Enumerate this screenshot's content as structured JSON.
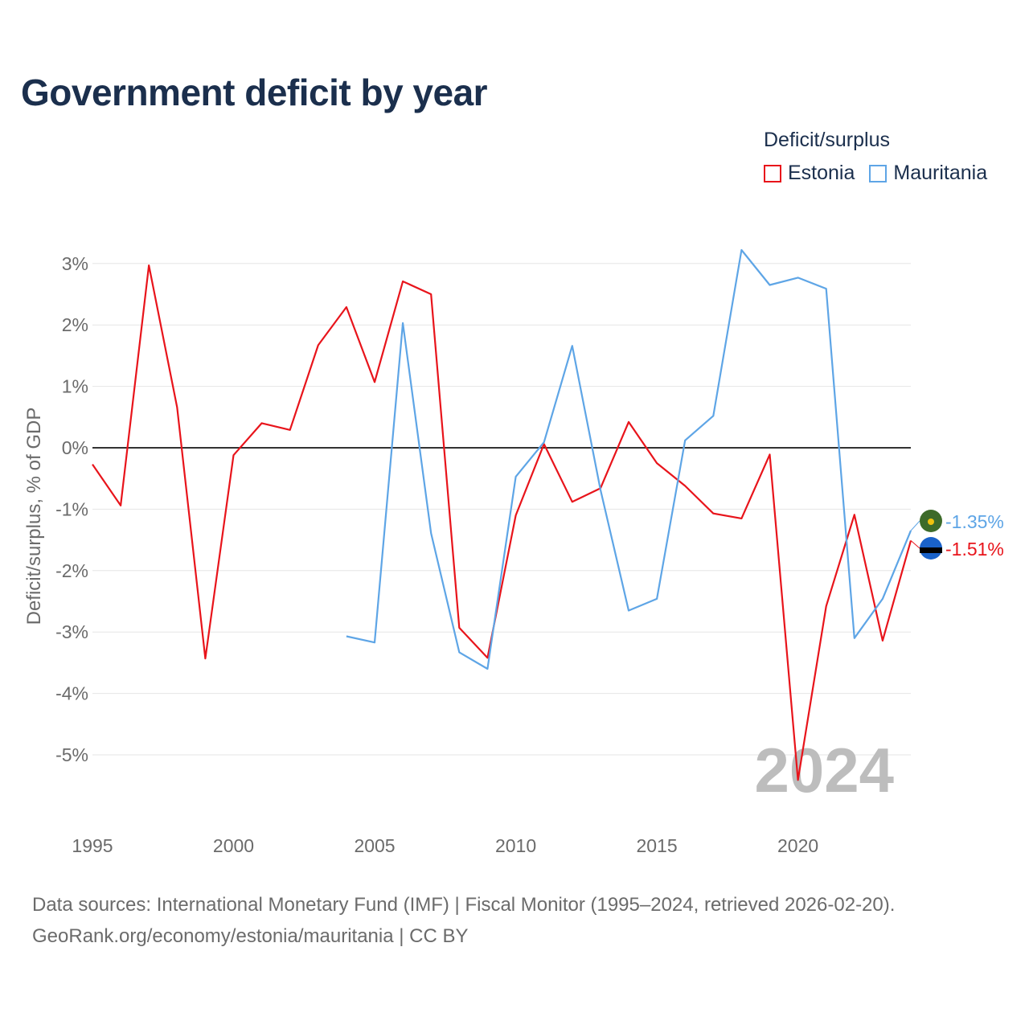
{
  "title": "Government deficit by year",
  "legend": {
    "title": "Deficit/surplus",
    "items": [
      {
        "label": "Estonia",
        "color": "#e8141b"
      },
      {
        "label": "Mauritania",
        "color": "#5ea5e6"
      }
    ]
  },
  "footer": {
    "line1": "Data sources: International Monetary Fund (IMF) | Fiscal Monitor (1995–2024, retrieved 2026-02-20).",
    "line2": "GeoRank.org/economy/estonia/mauritania | CC BY"
  },
  "chart_data": {
    "type": "line",
    "title": "Government deficit by year",
    "xlabel": "",
    "ylabel": "Deficit/surplus, % of GDP",
    "xlim": [
      1995,
      2024
    ],
    "ylim": [
      -6,
      3.5
    ],
    "x_ticks": [
      1995,
      2000,
      2005,
      2010,
      2015,
      2020
    ],
    "y_ticks": [
      3,
      2,
      1,
      0,
      -1,
      -2,
      -3,
      -4,
      -5
    ],
    "y_tick_labels": [
      "3%",
      "2%",
      "1%",
      "0%",
      "-1%",
      "-2%",
      "-3%",
      "-4%",
      "-5%"
    ],
    "watermark_year": "2024",
    "series": [
      {
        "name": "Estonia",
        "color": "#e8141b",
        "end_label": "-1.51%",
        "x": [
          1995,
          1996,
          1997,
          1998,
          1999,
          2000,
          2001,
          2002,
          2003,
          2004,
          2005,
          2006,
          2007,
          2008,
          2009,
          2010,
          2011,
          2012,
          2013,
          2014,
          2015,
          2016,
          2017,
          2018,
          2019,
          2020,
          2021,
          2022,
          2023,
          2024
        ],
        "values": [
          -0.27,
          -0.94,
          2.97,
          0.66,
          -3.43,
          -0.12,
          0.4,
          0.29,
          1.67,
          2.29,
          1.07,
          2.71,
          2.5,
          -2.93,
          -3.42,
          -1.1,
          0.06,
          -0.88,
          -0.66,
          0.42,
          -0.25,
          -0.62,
          -1.07,
          -1.15,
          -0.11,
          -5.41,
          -2.58,
          -1.09,
          -3.14,
          -1.51
        ]
      },
      {
        "name": "Mauritania",
        "color": "#5ea5e6",
        "end_label": "-1.35%",
        "x": [
          2004,
          2005,
          2006,
          2007,
          2008,
          2009,
          2010,
          2011,
          2012,
          2013,
          2014,
          2015,
          2016,
          2017,
          2018,
          2019,
          2020,
          2021,
          2022,
          2023,
          2024
        ],
        "values": [
          -3.07,
          -3.17,
          2.03,
          -1.39,
          -3.33,
          -3.6,
          -0.47,
          0.09,
          1.66,
          -0.68,
          -2.65,
          -2.46,
          0.12,
          0.52,
          3.22,
          2.65,
          2.77,
          2.59,
          -3.1,
          -2.46,
          -1.35
        ]
      }
    ]
  }
}
